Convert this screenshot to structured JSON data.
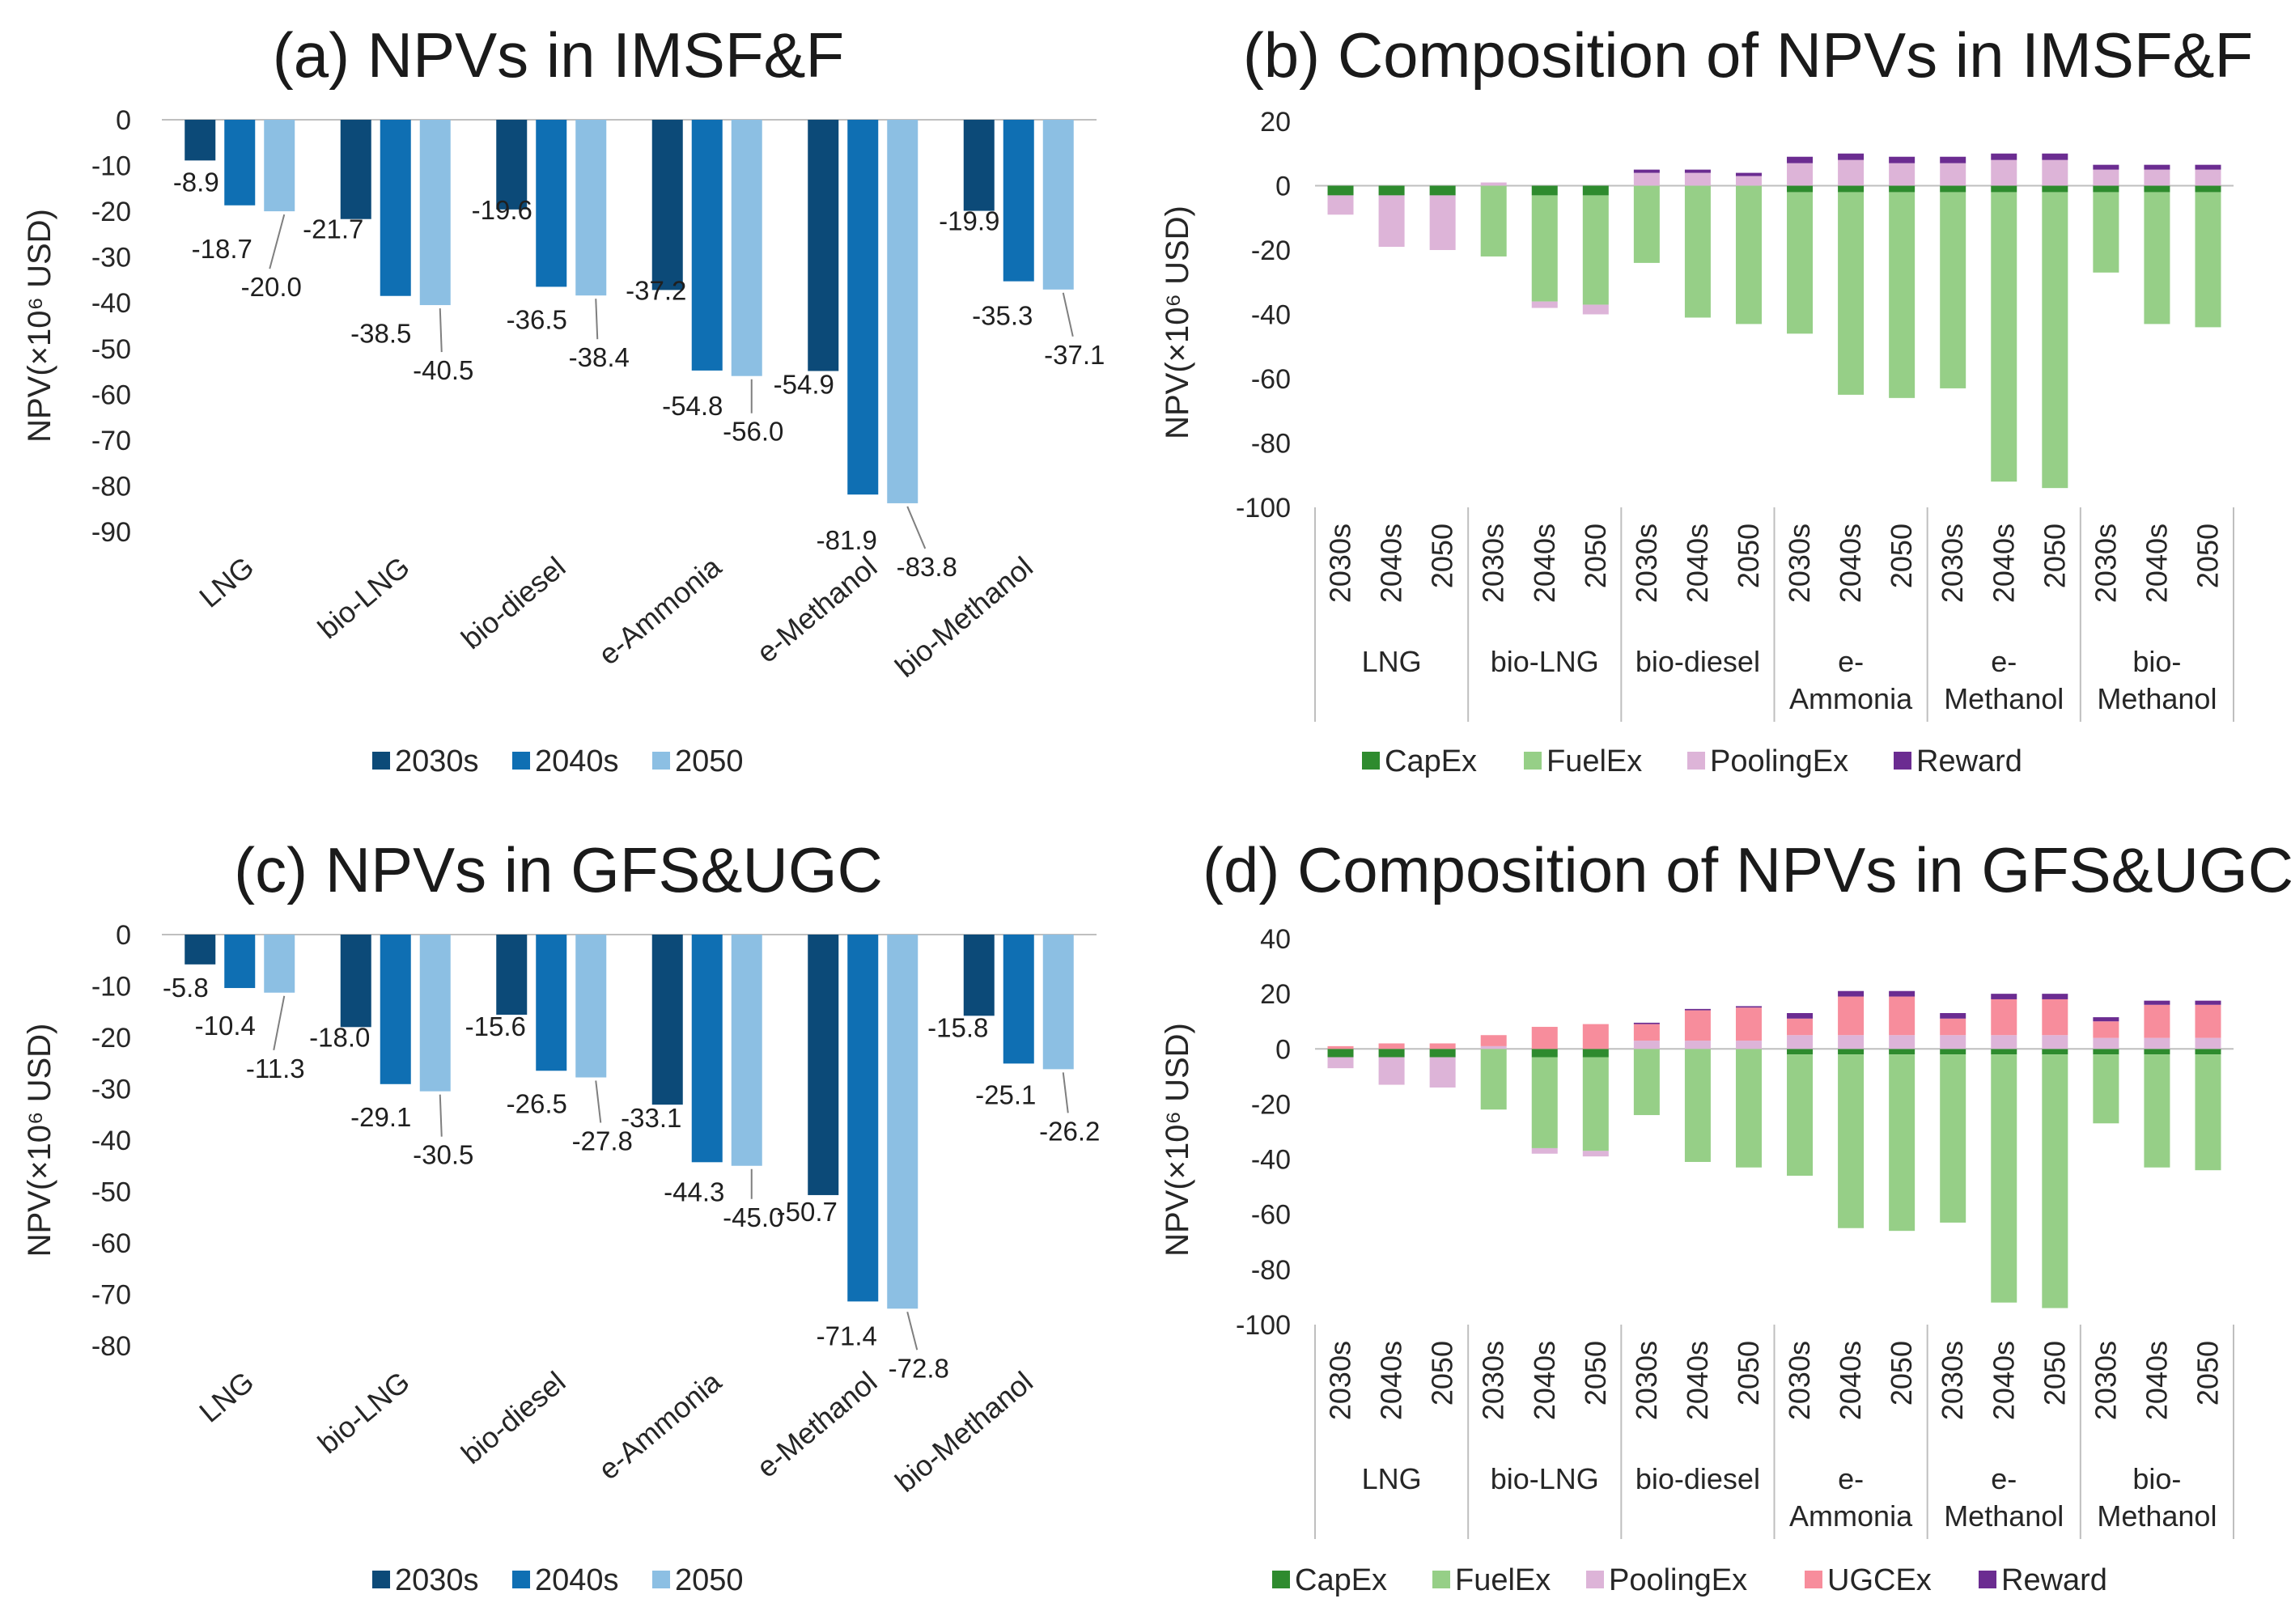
{
  "chart_data": [
    {
      "id": "a",
      "type": "bar",
      "title": "(a) NPVs in IMSF&F",
      "ylabel": "NPV(×10⁶ USD)",
      "ylim": [
        -90,
        0
      ],
      "yticks": [
        0,
        -10,
        -20,
        -30,
        -40,
        -50,
        -60,
        -70,
        -80,
        -90
      ],
      "categories": [
        "LNG",
        "bio-LNG",
        "bio-diesel",
        "e-Ammonia",
        "e-Methanol",
        "bio-Methanol"
      ],
      "series": [
        {
          "name": "2030s",
          "color": "#0c4a78",
          "values": [
            -8.9,
            -21.7,
            -19.6,
            -37.2,
            -54.9,
            -19.9
          ]
        },
        {
          "name": "2040s",
          "color": "#0f6fb3",
          "values": [
            -18.7,
            -38.5,
            -36.5,
            -54.8,
            -81.9,
            -35.3
          ]
        },
        {
          "name": "2050",
          "color": "#8cbfe3",
          "values": [
            -20.0,
            -40.5,
            -38.4,
            -56.0,
            -83.8,
            -37.1
          ]
        }
      ],
      "data_labels": [
        [
          "-8.9",
          "-21.7",
          "-19.6",
          "-37.2",
          "-54.9",
          "-19.9"
        ],
        [
          "-18.7",
          "-38.5",
          "-36.5",
          "-54.8",
          "-81.9",
          "-35.3"
        ],
        [
          "-20.0",
          "-40.5",
          "-38.4",
          "-56.0",
          "-83.8",
          "-37.1"
        ]
      ],
      "legend": [
        "2030s",
        "2040s",
        "2050"
      ]
    },
    {
      "id": "b",
      "type": "stacked-bar",
      "title": "(b) Composition of NPVs in IMSF&F",
      "ylabel": "NPV(×10⁶ USD)",
      "ylim": [
        -100,
        20
      ],
      "yticks": [
        20,
        0,
        -20,
        -40,
        -60,
        -80,
        -100
      ],
      "groups": [
        {
          "name": [
            "LNG"
          ],
          "bars": [
            "2030s",
            "2040s",
            "2050"
          ]
        },
        {
          "name": [
            "bio-LNG"
          ],
          "bars": [
            "2030s",
            "2040s",
            "2050"
          ]
        },
        {
          "name": [
            "bio-diesel"
          ],
          "bars": [
            "2030s",
            "2040s",
            "2050"
          ]
        },
        {
          "name": [
            "e-",
            "Ammonia"
          ],
          "bars": [
            "2030s",
            "2040s",
            "2050"
          ]
        },
        {
          "name": [
            "e-",
            "Methanol"
          ],
          "bars": [
            "2030s",
            "2040s",
            "2050"
          ]
        },
        {
          "name": [
            "bio-",
            "Methanol"
          ],
          "bars": [
            "2030s",
            "2040s",
            "2050"
          ]
        }
      ],
      "series": [
        {
          "name": "CapEx",
          "color": "#2e8b2e",
          "values": [
            -3,
            -3,
            -3,
            0,
            -3,
            -3,
            0,
            0,
            0,
            -2,
            -2,
            -2,
            -2,
            -2,
            -2,
            -2,
            -2,
            -2
          ]
        },
        {
          "name": "FuelEx",
          "color": "#96cf87",
          "values": [
            0,
            0,
            0,
            -22,
            -33,
            -34,
            -24,
            -41,
            -43,
            -44,
            -63,
            -64,
            -61,
            -90,
            -92,
            -25,
            -41,
            -42
          ]
        },
        {
          "name": "PoolingEx",
          "color": "#ddb4d8",
          "values": [
            -6,
            -16,
            -17,
            1,
            -2,
            -3,
            4,
            4,
            3,
            7,
            8,
            7,
            7,
            8,
            8,
            5,
            5,
            5
          ]
        },
        {
          "name": "Reward",
          "color": "#6b2c91",
          "values": [
            0,
            0,
            0,
            0,
            0,
            0,
            1,
            1,
            1,
            2,
            2,
            2,
            2,
            2,
            2,
            1.5,
            1.5,
            1.5
          ]
        }
      ],
      "legend": [
        "CapEx",
        "FuelEx",
        "PoolingEx",
        "Reward"
      ]
    },
    {
      "id": "c",
      "type": "bar",
      "title": "(c) NPVs in GFS&UGC",
      "ylabel": "NPV(×10⁶ USD)",
      "ylim": [
        -80,
        0
      ],
      "yticks": [
        0,
        -10,
        -20,
        -30,
        -40,
        -50,
        -60,
        -70,
        -80
      ],
      "categories": [
        "LNG",
        "bio-LNG",
        "bio-diesel",
        "e-Ammonia",
        "e-Methanol",
        "bio-Methanol"
      ],
      "series": [
        {
          "name": "2030s",
          "color": "#0c4a78",
          "values": [
            -5.8,
            -18.0,
            -15.6,
            -33.1,
            -50.7,
            -15.8
          ]
        },
        {
          "name": "2040s",
          "color": "#0f6fb3",
          "values": [
            -10.4,
            -29.1,
            -26.5,
            -44.3,
            -71.4,
            -25.1
          ]
        },
        {
          "name": "2050",
          "color": "#8cbfe3",
          "values": [
            -11.3,
            -30.5,
            -27.8,
            -45.0,
            -72.8,
            -26.2
          ]
        }
      ],
      "data_labels": [
        [
          "-5.8",
          "-18.0",
          "-15.6",
          "-33.1",
          "-50.7",
          "-15.8"
        ],
        [
          "-10.4",
          "-29.1",
          "-26.5",
          "-44.3",
          "-71.4",
          "-25.1"
        ],
        [
          "-11.3",
          "-30.5",
          "-27.8",
          "-45.0",
          "-72.8",
          "-26.2"
        ]
      ],
      "legend": [
        "2030s",
        "2040s",
        "2050"
      ]
    },
    {
      "id": "d",
      "type": "stacked-bar",
      "title": "(d) Composition of NPVs in GFS&UGC",
      "ylabel": "NPV(×10⁶ USD)",
      "ylim": [
        -100,
        40
      ],
      "yticks": [
        40,
        20,
        0,
        -20,
        -40,
        -60,
        -80,
        -100
      ],
      "groups": [
        {
          "name": [
            "LNG"
          ],
          "bars": [
            "2030s",
            "2040s",
            "2050"
          ]
        },
        {
          "name": [
            "bio-LNG"
          ],
          "bars": [
            "2030s",
            "2040s",
            "2050"
          ]
        },
        {
          "name": [
            "bio-diesel"
          ],
          "bars": [
            "2030s",
            "2040s",
            "2050"
          ]
        },
        {
          "name": [
            "e-",
            "Ammonia"
          ],
          "bars": [
            "2030s",
            "2040s",
            "2050"
          ]
        },
        {
          "name": [
            "e-",
            "Methanol"
          ],
          "bars": [
            "2030s",
            "2040s",
            "2050"
          ]
        },
        {
          "name": [
            "bio-",
            "Methanol"
          ],
          "bars": [
            "2030s",
            "2040s",
            "2050"
          ]
        }
      ],
      "series": [
        {
          "name": "CapEx",
          "color": "#2e8b2e",
          "values": [
            -3,
            -3,
            -3,
            0,
            -3,
            -3,
            0,
            0,
            0,
            -2,
            -2,
            -2,
            -2,
            -2,
            -2,
            -2,
            -2,
            -2
          ]
        },
        {
          "name": "FuelEx",
          "color": "#96cf87",
          "values": [
            0,
            0,
            0,
            -22,
            -33,
            -34,
            -24,
            -41,
            -43,
            -44,
            -63,
            -64,
            -61,
            -90,
            -92,
            -25,
            -41,
            -42
          ]
        },
        {
          "name": "PoolingEx",
          "color": "#ddb4d8",
          "values": [
            -4,
            -10,
            -11,
            1,
            -2,
            -2,
            3,
            3,
            3,
            5,
            5,
            5,
            5,
            5,
            5,
            4,
            4,
            4
          ]
        },
        {
          "name": "UGCEx",
          "color": "#f78d9c",
          "values": [
            1,
            2,
            2,
            4,
            8,
            9,
            6,
            11,
            12,
            6,
            14,
            14,
            6,
            13,
            13,
            6,
            12,
            12
          ]
        },
        {
          "name": "Reward",
          "color": "#6b2c91",
          "values": [
            0,
            0,
            0,
            0,
            0,
            0,
            0.5,
            0.5,
            0.5,
            2,
            2,
            2,
            2,
            2,
            2,
            1.5,
            1.5,
            1.5
          ]
        }
      ],
      "legend": [
        "CapEx",
        "FuelEx",
        "PoolingEx",
        "UGCEx",
        "Reward"
      ]
    }
  ]
}
